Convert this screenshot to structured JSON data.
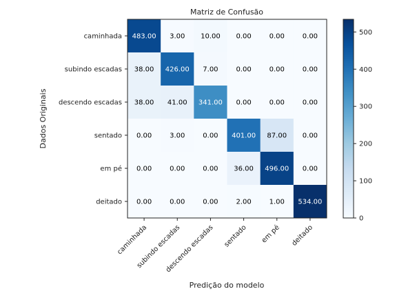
{
  "chart_data": {
    "type": "heatmap",
    "title": "Matriz de Confusão",
    "xlabel": "Predição do modelo",
    "ylabel": "Dados Originais",
    "x_categories": [
      "caminhada",
      "subindo escadas",
      "descendo escadas",
      "sentado",
      "em pé",
      "deitado"
    ],
    "y_categories": [
      "caminhada",
      "subindo escadas",
      "descendo escadas",
      "sentado",
      "em pé",
      "deitado"
    ],
    "values": [
      [
        483.0,
        3.0,
        10.0,
        0.0,
        0.0,
        0.0
      ],
      [
        38.0,
        426.0,
        7.0,
        0.0,
        0.0,
        0.0
      ],
      [
        38.0,
        41.0,
        341.0,
        0.0,
        0.0,
        0.0
      ],
      [
        0.0,
        3.0,
        0.0,
        401.0,
        87.0,
        0.0
      ],
      [
        0.0,
        0.0,
        0.0,
        36.0,
        496.0,
        0.0
      ],
      [
        0.0,
        0.0,
        0.0,
        2.0,
        1.0,
        534.0
      ]
    ],
    "value_format": "0.00",
    "colormap": "Blues",
    "colorbar": {
      "range": [
        0,
        534
      ],
      "ticks": [
        0,
        100,
        200,
        300,
        400,
        500
      ]
    },
    "colors": {
      "low": "#f7fbff",
      "high": "#08306b",
      "text_dark": "#000000",
      "text_light": "#ffffff"
    }
  }
}
